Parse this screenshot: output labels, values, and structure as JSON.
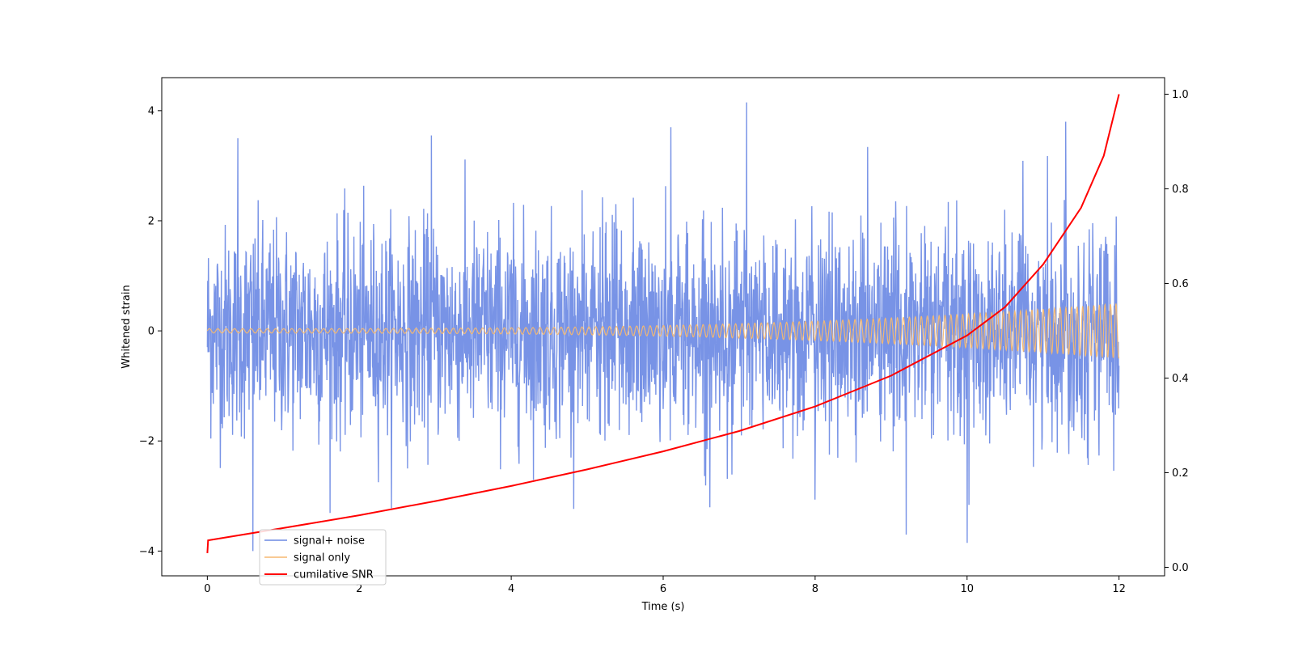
{
  "chart_data": {
    "type": "line",
    "title": "",
    "xlabel": "Time (s)",
    "ylabel": "Whitened strain",
    "y2label": "",
    "xlim": [
      -0.6,
      12.6
    ],
    "ylim": [
      -4.45,
      4.6
    ],
    "y2lim": [
      -0.018,
      1.035
    ],
    "xticks": [
      0,
      2,
      4,
      6,
      8,
      10,
      12
    ],
    "xtick_labels": [
      "0",
      "2",
      "4",
      "6",
      "8",
      "10",
      "12"
    ],
    "yticks": [
      -4,
      -2,
      0,
      2,
      4
    ],
    "ytick_labels": [
      "−4",
      "−2",
      "0",
      "2",
      "4"
    ],
    "y2ticks": [
      0.0,
      0.2,
      0.4,
      0.6,
      0.8,
      1.0
    ],
    "y2tick_labels": [
      "0.0",
      "0.2",
      "0.4",
      "0.6",
      "0.8",
      "1.0"
    ],
    "grid": false,
    "legend_position": "lower-left",
    "series": [
      {
        "name": "signal+ noise",
        "axis": "left",
        "color": "#6c8ae4",
        "x_range": [
          0,
          12
        ],
        "noise_std": 0.95,
        "extremes": [
          {
            "x": 7.1,
            "y": 4.15
          },
          {
            "x": 10.0,
            "y": -3.85
          },
          {
            "x": 0.6,
            "y": -4.0
          },
          {
            "x": 0.4,
            "y": 3.5
          },
          {
            "x": 2.95,
            "y": 3.55
          },
          {
            "x": 11.3,
            "y": 3.8
          },
          {
            "x": 6.1,
            "y": 3.7
          },
          {
            "x": 9.2,
            "y": -3.7
          }
        ]
      },
      {
        "name": "signal only",
        "axis": "left",
        "color": "#f5b870",
        "x_range": [
          0,
          12
        ],
        "amplitude_start": 0.04,
        "amplitude_end": 0.5
      },
      {
        "name": "cumilative SNR",
        "axis": "right",
        "color": "#ff0000",
        "x": [
          0,
          0.01,
          1,
          2,
          3,
          4,
          5,
          6,
          7,
          8,
          9,
          10,
          10.5,
          11,
          11.5,
          11.8,
          12
        ],
        "y": [
          0.03,
          0.057,
          0.083,
          0.11,
          0.14,
          0.172,
          0.207,
          0.245,
          0.288,
          0.34,
          0.405,
          0.49,
          0.55,
          0.64,
          0.76,
          0.87,
          1.0
        ]
      }
    ]
  }
}
